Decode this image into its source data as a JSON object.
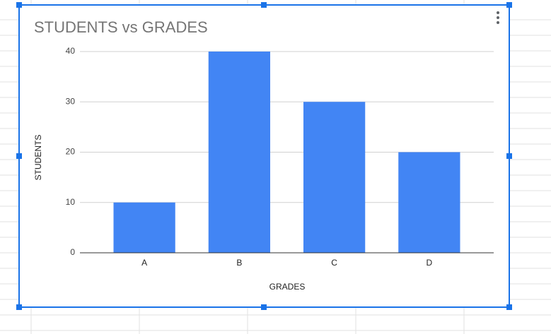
{
  "chart_data": {
    "type": "bar",
    "title": "STUDENTS vs GRADES",
    "x_label": "GRADES",
    "y_label": "STUDENTS",
    "categories": [
      "A",
      "B",
      "C",
      "D"
    ],
    "values": [
      10,
      40,
      30,
      20
    ],
    "color": "#4285f4",
    "ylim": [
      0,
      40
    ],
    "yticks": [
      0,
      10,
      20,
      30,
      40
    ],
    "grid": true
  }
}
